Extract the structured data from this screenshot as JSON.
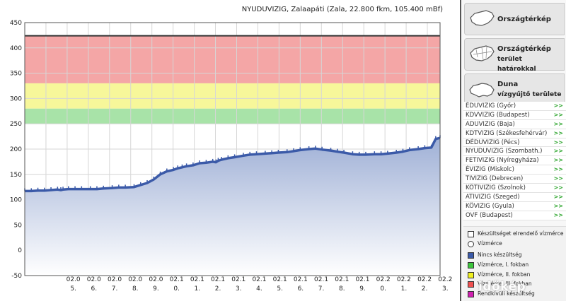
{
  "chart_title": "NYUDUVIZIG, Zalaapáti (Zala, 22.800 fkm, 105.400 mBf)",
  "chart_data": {
    "type": "area",
    "title": "NYUDUVIZIG, Zalaapáti (Zala, 22.800 fkm, 105.400 mBf)",
    "xlabel": "",
    "ylabel": "",
    "ylim": [
      -50,
      450
    ],
    "yticks": [
      -50,
      0,
      50,
      100,
      150,
      200,
      250,
      300,
      350,
      400,
      450
    ],
    "xlim": [
      0,
      19
    ],
    "x_tick_labels": [
      {
        "line1": "02.0",
        "line2": "5."
      },
      {
        "line1": "02.0",
        "line2": "6."
      },
      {
        "line1": "02.0",
        "line2": "7."
      },
      {
        "line1": "02.0",
        "line2": "8."
      },
      {
        "line1": "02.0",
        "line2": "9."
      },
      {
        "line1": "02.1",
        "line2": "0."
      },
      {
        "line1": "02.1",
        "line2": "1."
      },
      {
        "line1": "02.1",
        "line2": "2."
      },
      {
        "line1": "02.1",
        "line2": "3."
      },
      {
        "line1": "02.1",
        "line2": "4."
      },
      {
        "line1": "02.1",
        "line2": "5."
      },
      {
        "line1": "02.1",
        "line2": "6."
      },
      {
        "line1": "02.1",
        "line2": "7."
      },
      {
        "line1": "02.1",
        "line2": "8."
      },
      {
        "line1": "02.1",
        "line2": "9."
      },
      {
        "line1": "02.2",
        "line2": "0."
      },
      {
        "line1": "02.2",
        "line2": "1."
      },
      {
        "line1": "02.2",
        "line2": "2."
      },
      {
        "line1": "02.2",
        "line2": "3."
      }
    ],
    "x_tick_positions": [
      2,
      3,
      4,
      5,
      6,
      7,
      8,
      9,
      10,
      11,
      12,
      13,
      14,
      15,
      16,
      17,
      18,
      19,
      20
    ],
    "threshold_line": 424,
    "bands": [
      {
        "name": "Vízmérce, III. fokban",
        "from": 330,
        "to": 424,
        "color": "#f4a6a6"
      },
      {
        "name": "Vízmérce, II. fokban",
        "from": 280,
        "to": 330,
        "color": "#f7f79a"
      },
      {
        "name": "Vízmérce, I. fokban",
        "from": 250,
        "to": 280,
        "color": "#a8e3a8"
      }
    ],
    "series": [
      {
        "values_x": [
          0,
          0.3,
          0.6,
          0.9,
          1.2,
          1.5,
          1.65,
          1.75,
          2,
          2.3,
          2.6,
          3,
          3.3,
          3.6,
          4,
          4.3,
          4.6,
          5,
          5.3,
          5.6,
          5.9,
          6.2,
          6.5,
          6.8,
          7,
          7.2,
          7.4,
          7.7,
          8,
          8.3,
          8.6,
          8.75,
          8.85,
          9,
          9.3,
          9.6,
          10,
          10.3,
          10.6,
          11,
          11.3,
          11.6,
          12,
          12.3,
          12.6,
          13,
          13.3,
          13.6,
          14,
          14.3,
          14.6,
          15,
          15.3,
          15.6,
          16,
          16.3,
          16.6,
          17,
          17.3,
          17.6,
          18,
          18.3,
          18.6,
          18.8,
          19
        ],
        "values": [
          117,
          117,
          118,
          118,
          119,
          120,
          119,
          120,
          121,
          121,
          121,
          121,
          121,
          122,
          123,
          124,
          124,
          125,
          129,
          133,
          140,
          150,
          156,
          159,
          162,
          164,
          166,
          168,
          172,
          173,
          175,
          174,
          177,
          179,
          182,
          184,
          187,
          189,
          190,
          191,
          192,
          193,
          194,
          196,
          198,
          200,
          201,
          199,
          197,
          195,
          193,
          190,
          189,
          189,
          190,
          190,
          191,
          193,
          195,
          198,
          200,
          202,
          203,
          220,
          222
        ]
      }
    ],
    "line_color": "#3b5aa8",
    "fill_color_top": "#9fb0d6",
    "fill_color_bottom": "#ffffff",
    "grid": true
  },
  "sidebar": {
    "map_buttons": [
      {
        "line1": "Országtérkép",
        "line2": ""
      },
      {
        "line1": "Országtérkép",
        "line2": "terület határokkal"
      },
      {
        "line1": "Duna",
        "line2": "vízgyűjtő területe"
      }
    ],
    "regions": [
      "ÉDUVIZIG (Győr)",
      "KDVVIZIG (Budapest)",
      "ADUVIZIG (Baja)",
      "KDTVIZIG (Székesfehérvár)",
      "DÉDUVIZIG (Pécs)",
      "NYUDUVIZIG (Szombath.)",
      "FETIVIZIG (Nyíregyháza)",
      "ÉVIZIG (Miskolc)",
      "TIVIZIG (Debrecen)",
      "KÖTIVIZIG (Szolnok)",
      "ATIVIZIG (Szeged)",
      "KÖVIZIG (Gyula)",
      "OVF (Budapest)"
    ],
    "region_arrow": ">>"
  },
  "legend": {
    "items": [
      {
        "label": "Készültséget elrendelő vízmérce",
        "shape": "square",
        "color": "#ffffff"
      },
      {
        "label": "Vízmérce",
        "shape": "circle",
        "color": "#ffffff"
      },
      {
        "label": "Nincs készültség",
        "shape": "square",
        "color": "#3b5aa8"
      },
      {
        "label": "Vízmérce, I. fokban",
        "shape": "square",
        "color": "#3cc43c"
      },
      {
        "label": "Vízmérce, II. fokban",
        "shape": "square",
        "color": "#f0f020"
      },
      {
        "label": "Vízmérce, III. fokban",
        "shape": "square",
        "color": "#f05050"
      },
      {
        "label": "Rendkívüli készültség",
        "shape": "square",
        "color": "#d020b0"
      }
    ]
  },
  "watermark": "időkép"
}
